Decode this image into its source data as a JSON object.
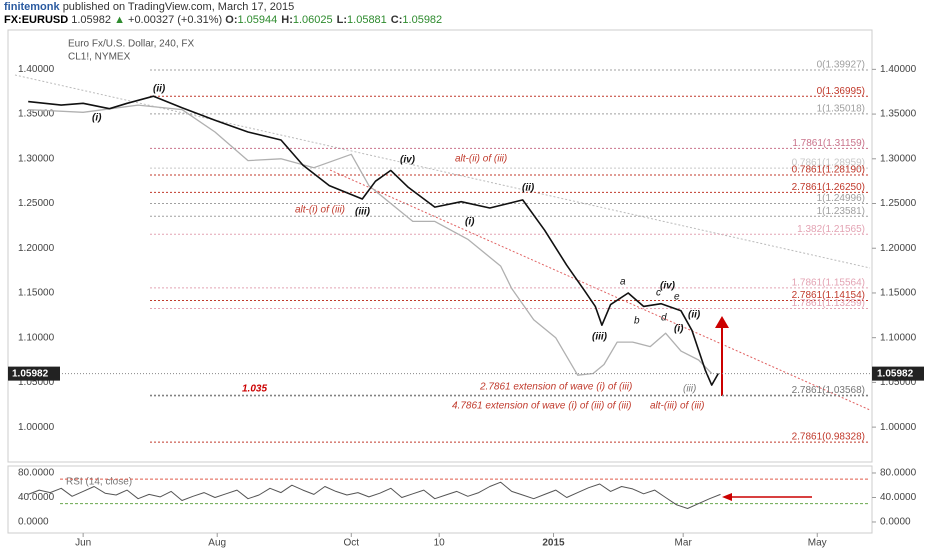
{
  "header": {
    "author": "finitemonk",
    "published": "published on TradingView.com, March 17, 2015",
    "symbol": "FX:EURUSD",
    "price": "1.05982",
    "arrow": "▲",
    "change": "+0.00327 (+0.31%)",
    "ohlc": [
      {
        "label": "O:",
        "value": "1.05944"
      },
      {
        "label": "H:",
        "value": "1.06025"
      },
      {
        "label": "L:",
        "value": "1.05881"
      },
      {
        "label": "C:",
        "value": "1.05982"
      }
    ]
  },
  "chart_data": [
    {
      "type": "line",
      "title": "Euro Fx/U.S. Dollar, 240, FX",
      "subtitle": "CL1!, NYMEX",
      "xlim": [
        -31,
        358
      ],
      "xticks": [
        {
          "value": 0,
          "label": "Jun"
        },
        {
          "value": 61,
          "label": "Aug"
        },
        {
          "value": 122,
          "label": "Oct"
        },
        {
          "value": 162,
          "label": "10"
        },
        {
          "value": 214,
          "label": "2015"
        },
        {
          "value": 273,
          "label": "Mar"
        },
        {
          "value": 334,
          "label": "May"
        }
      ],
      "ylim": [
        0.961,
        1.444
      ],
      "yticks": [
        {
          "value": 1.4,
          "label": "1.40000"
        },
        {
          "value": 1.35,
          "label": "1.35000"
        },
        {
          "value": 1.3,
          "label": "1.30000"
        },
        {
          "value": 1.25,
          "label": "1.25000"
        },
        {
          "value": 1.2,
          "label": "1.20000"
        },
        {
          "value": 1.15,
          "label": "1.15000"
        },
        {
          "value": 1.1,
          "label": "1.10000"
        },
        {
          "value": 1.05,
          "label": "1.05000"
        },
        {
          "value": 1,
          "label": "1.00000"
        }
      ],
      "series": [
        {
          "name": "Euro Fx/U.S. Dollar",
          "color": "#111111",
          "x": [
            -25,
            -10,
            0,
            12,
            20,
            32,
            45,
            60,
            75,
            90,
            100,
            112,
            120,
            127,
            133,
            140,
            148,
            160,
            172,
            185,
            200,
            210,
            220,
            228,
            233,
            236,
            240,
            248,
            255,
            263,
            272,
            277,
            283,
            286,
            289
          ],
          "values": [
            1.364,
            1.36,
            1.362,
            1.356,
            1.362,
            1.37,
            1.357,
            1.343,
            1.33,
            1.321,
            1.293,
            1.27,
            1.262,
            1.255,
            1.275,
            1.287,
            1.268,
            1.246,
            1.252,
            1.245,
            1.254,
            1.22,
            1.181,
            1.153,
            1.135,
            1.114,
            1.137,
            1.15,
            1.135,
            1.138,
            1.13,
            1.108,
            1.064,
            1.047,
            1.06
          ]
        },
        {
          "name": "CL1!",
          "color": "#b0b0b0",
          "x": [
            -25,
            0,
            25,
            45,
            60,
            75,
            90,
            105,
            122,
            130,
            140,
            150,
            160,
            175,
            190,
            195,
            205,
            215,
            225,
            232,
            237,
            243,
            250,
            258,
            265,
            272,
            280,
            286
          ],
          "values": [
            1.355,
            1.352,
            1.36,
            1.355,
            1.33,
            1.298,
            1.3,
            1.29,
            1.305,
            1.27,
            1.25,
            1.23,
            1.23,
            1.21,
            1.18,
            1.155,
            1.12,
            1.1,
            1.058,
            1.06,
            1.07,
            1.095,
            1.095,
            1.09,
            1.105,
            1.085,
            1.075,
            1.06
          ]
        }
      ],
      "current": {
        "value": 1.05982,
        "label": "1.05982"
      },
      "target": {
        "value": 1.035,
        "label": "1.035"
      },
      "levels": [
        {
          "value": 1.39927,
          "label": "0(1.39927)",
          "color": "#a0a0a0"
        },
        {
          "value": 1.36995,
          "label": "0(1.36995)",
          "color": "#c0392b"
        },
        {
          "value": 1.35018,
          "label": "1(1.35018)",
          "color": "#a0a0a0"
        },
        {
          "value": 1.31159,
          "label": "1.7861(1.31159)",
          "color": "#c9728a"
        },
        {
          "value": 1.28959,
          "label": "0.7861(1.28959)",
          "color": "#c8c8c8"
        },
        {
          "value": 1.2819,
          "label": "0.7861(1.28190)",
          "color": "#c0392b"
        },
        {
          "value": 1.2625,
          "label": "2.7861(1.26250)",
          "color": "#c0392b"
        },
        {
          "value": 1.24996,
          "label": "1(1.24996)",
          "color": "#a0a0a0"
        },
        {
          "value": 1.23581,
          "label": "1(1.23581)",
          "color": "#a0a0a0"
        },
        {
          "value": 1.21565,
          "label": "1.382(1.21565)",
          "color": "#e3a3b3"
        },
        {
          "value": 1.15564,
          "label": "1.7861(1.15564)",
          "color": "#e3a3b3"
        },
        {
          "value": 1.14154,
          "label": "2.7861(1.14154)",
          "color": "#c0392b"
        },
        {
          "value": 1.13259,
          "label": "1.7861(1.13259)",
          "color": "#e3a3b3"
        },
        {
          "value": 1.03568,
          "label": "2.7861(1.03568)",
          "color": "#777777"
        },
        {
          "value": 0.98328,
          "label": "2.7861(0.98328)",
          "color": "#c0392b"
        }
      ],
      "annotations": [
        {
          "text": "(i)",
          "color": "#111"
        },
        {
          "text": "(ii)",
          "color": "#111"
        },
        {
          "text": "(iv)",
          "color": "#111"
        },
        {
          "text": "alt-(ii) of (iii)",
          "color": "#c0392b"
        },
        {
          "text": "alt-(i) of (iii)",
          "color": "#c0392b"
        },
        {
          "text": "(iii)",
          "color": "#111"
        },
        {
          "text": "(ii)",
          "color": "#111"
        },
        {
          "text": "(i)",
          "color": "#111"
        },
        {
          "text": "a",
          "color": "#111"
        },
        {
          "text": "(iv)",
          "color": "#111"
        },
        {
          "text": "c",
          "color": "#111"
        },
        {
          "text": "e",
          "color": "#111"
        },
        {
          "text": "b",
          "color": "#111"
        },
        {
          "text": "d",
          "color": "#111"
        },
        {
          "text": "(ii)",
          "color": "#111"
        },
        {
          "text": "(i)",
          "color": "#111"
        },
        {
          "text": "(iii)",
          "color": "#111"
        },
        {
          "text": "(iii)",
          "color": "#777"
        },
        {
          "text": "2.7861 extension of wave (i) of (iii)",
          "color": "#c0392b"
        },
        {
          "text": "4.7861 extension of wave (i) of (iii) of (iii)",
          "color": "#c0392b"
        },
        {
          "text": "alt-(iii) of (iii)",
          "color": "#c0392b"
        }
      ]
    },
    {
      "type": "line",
      "title": "RSI (14, close)",
      "ylim": [
        -18,
        91.4
      ],
      "yticks": [
        {
          "value": 80,
          "label": "80.0000"
        },
        {
          "value": 40,
          "label": "40.0000"
        },
        {
          "value": 0,
          "label": "0.0000"
        }
      ],
      "levels": [
        {
          "value": 70,
          "color": "#e05a4a"
        },
        {
          "value": 30,
          "color": "#6aa84f"
        }
      ],
      "series": [
        {
          "name": "RSI",
          "color": "#555555",
          "x": [
            -25,
            -20,
            -15,
            -10,
            -5,
            0,
            5,
            10,
            15,
            20,
            25,
            30,
            35,
            40,
            45,
            50,
            55,
            60,
            65,
            70,
            75,
            80,
            85,
            90,
            95,
            100,
            105,
            110,
            115,
            120,
            125,
            130,
            135,
            140,
            145,
            150,
            155,
            160,
            165,
            170,
            175,
            180,
            185,
            190,
            195,
            200,
            205,
            210,
            215,
            220,
            225,
            230,
            235,
            240,
            245,
            250,
            255,
            260,
            265,
            270,
            275,
            280,
            285,
            290
          ],
          "values": [
            45,
            52,
            48,
            55,
            42,
            50,
            58,
            47,
            44,
            52,
            38,
            45,
            41,
            50,
            35,
            42,
            48,
            40,
            46,
            52,
            38,
            44,
            55,
            48,
            60,
            52,
            45,
            58,
            50,
            44,
            48,
            41,
            47,
            55,
            40,
            46,
            52,
            38,
            44,
            50,
            42,
            48,
            58,
            65,
            50,
            44,
            38,
            45,
            52,
            40,
            48,
            56,
            62,
            50,
            58,
            54,
            46,
            52,
            40,
            28,
            22,
            30,
            38,
            45
          ]
        }
      ]
    }
  ]
}
